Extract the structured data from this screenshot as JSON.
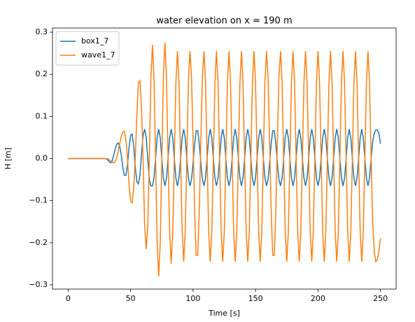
{
  "chart_data": {
    "type": "line",
    "title": "water elevation on x = 190 m",
    "x_label": "Time [s]",
    "y_label": "H [m]",
    "legend": "upper left",
    "grid": false,
    "xlim": [
      -12.5,
      262.5
    ],
    "ylim": [
      -0.31,
      0.31
    ],
    "xticks": [
      0,
      50,
      100,
      150,
      200,
      250
    ],
    "yticks": [
      {
        "value": -0.3,
        "label": "−0.3"
      },
      {
        "value": -0.2,
        "label": "−0.2"
      },
      {
        "value": -0.1,
        "label": "−0.1"
      },
      {
        "value": 0,
        "label": "0.0"
      },
      0.1,
      0.2,
      0.3
    ],
    "x": [
      0,
      1.25,
      2.5,
      3.75,
      5,
      6.25,
      7.5,
      8.75,
      10,
      11.25,
      12.5,
      13.75,
      15,
      16.25,
      17.5,
      18.75,
      20,
      21.25,
      22.5,
      23.75,
      25,
      26.25,
      27.5,
      28.75,
      30,
      31.25,
      32.5,
      33.75,
      35,
      36.25,
      37.5,
      38.75,
      40,
      41.25,
      42.5,
      43.75,
      45,
      46.25,
      47.5,
      48.75,
      50,
      51.25,
      52.5,
      53.75,
      55,
      56.25,
      57.5,
      58.75,
      60,
      61.25,
      62.5,
      63.75,
      65,
      66.25,
      67.5,
      68.75,
      70,
      71.25,
      72.5,
      73.75,
      75,
      76.25,
      77.5,
      78.75,
      80,
      81.25,
      82.5,
      83.75,
      85,
      86.25,
      87.5,
      88.75,
      90,
      91.25,
      92.5,
      93.75,
      95,
      96.25,
      97.5,
      98.75,
      100,
      101.25,
      102.5,
      103.75,
      105,
      106.25,
      107.5,
      108.75,
      110,
      111.25,
      112.5,
      113.75,
      115,
      116.25,
      117.5,
      118.75,
      120,
      121.25,
      122.5,
      123.75,
      125,
      126.25,
      127.5,
      128.75,
      130,
      131.25,
      132.5,
      133.75,
      135,
      136.25,
      137.5,
      138.75,
      140,
      141.25,
      142.5,
      143.75,
      145,
      146.25,
      147.5,
      148.75,
      150,
      151.25,
      152.5,
      153.75,
      155,
      156.25,
      157.5,
      158.75,
      160,
      161.25,
      162.5,
      163.75,
      165,
      166.25,
      167.5,
      168.75,
      170,
      171.25,
      172.5,
      173.75,
      175,
      176.25,
      177.5,
      178.75,
      180,
      181.25,
      182.5,
      183.75,
      185,
      186.25,
      187.5,
      188.75,
      190,
      191.25,
      192.5,
      193.75,
      195,
      196.25,
      197.5,
      198.75,
      200,
      201.25,
      202.5,
      203.75,
      205,
      206.25,
      207.5,
      208.75,
      210,
      211.25,
      212.5,
      213.75,
      215,
      216.25,
      217.5,
      218.75,
      220,
      221.25,
      222.5,
      223.75,
      225,
      226.25,
      227.5,
      228.75,
      230,
      231.25,
      232.5,
      233.75,
      235,
      236.25,
      237.5,
      238.75,
      240,
      241.25,
      242.5,
      243.75,
      245,
      246.25,
      247.5,
      248.75,
      250
    ],
    "series": [
      {
        "name": "box1_7",
        "color": "#1f77b4",
        "values": [
          0,
          0,
          0,
          0,
          0,
          0,
          0,
          0,
          0,
          0,
          0,
          0,
          0,
          0,
          0,
          0,
          0,
          0,
          0,
          0,
          0,
          0,
          0,
          0,
          0,
          -0.002,
          -0.006,
          -0.01,
          -0.008,
          0.005,
          0.02,
          0.033,
          0.037,
          0.03,
          0.01,
          -0.02,
          -0.04,
          -0.04,
          -0.015,
          0.025,
          0.055,
          0.058,
          0.03,
          -0.02,
          -0.055,
          -0.06,
          -0.04,
          0.01,
          0.055,
          0.07,
          0.05,
          0,
          -0.05,
          -0.065,
          -0.065,
          -0.046,
          0,
          0.049,
          0.07,
          0.049,
          0,
          -0.046,
          -0.065,
          -0.046,
          0,
          0.049,
          0.07,
          0.049,
          0,
          -0.046,
          -0.065,
          -0.046,
          0,
          0.049,
          0.07,
          0.049,
          0,
          -0.046,
          -0.065,
          -0.05,
          -0.011,
          0.035,
          0.066,
          0.066,
          0.035,
          -0.011,
          -0.05,
          -0.065,
          -0.046,
          0,
          0.049,
          0.07,
          0.049,
          0,
          -0.046,
          -0.065,
          -0.046,
          0,
          0.049,
          0.07,
          0.049,
          0,
          -0.046,
          -0.065,
          -0.046,
          0,
          0.049,
          0.07,
          0.049,
          0,
          -0.046,
          -0.065,
          -0.046,
          0,
          0.049,
          0.07,
          0.049,
          0,
          -0.046,
          -0.065,
          -0.046,
          0,
          0.049,
          0.07,
          0.049,
          0,
          -0.046,
          -0.065,
          -0.05,
          -0.011,
          0.035,
          0.066,
          0.066,
          0.035,
          -0.011,
          -0.05,
          -0.065,
          -0.046,
          0,
          0.049,
          0.07,
          0.049,
          0,
          -0.046,
          -0.065,
          -0.046,
          0,
          0.049,
          0.07,
          0.049,
          0,
          -0.046,
          -0.065,
          -0.046,
          0,
          0.049,
          0.07,
          0.049,
          0,
          -0.046,
          -0.065,
          -0.046,
          0,
          0.049,
          0.07,
          0.049,
          0,
          -0.046,
          -0.065,
          -0.046,
          0,
          0.049,
          0.07,
          0.049,
          0,
          -0.046,
          -0.065,
          -0.046,
          0,
          0.049,
          0.07,
          0.049,
          0,
          -0.046,
          -0.065,
          -0.046,
          0,
          0.049,
          0.07,
          0.049,
          0,
          -0.046,
          -0.065,
          -0.046,
          0,
          0.04,
          0.06,
          0.068,
          0.068,
          0.06,
          0.035
        ]
      },
      {
        "name": "wave1_7",
        "color": "#ff7f0e",
        "values": [
          0,
          0,
          0,
          0,
          0,
          0,
          0,
          0,
          0,
          0,
          0,
          0,
          0,
          0,
          0,
          0,
          0,
          0,
          0,
          0,
          0,
          0,
          0,
          0,
          0,
          0,
          -0.002,
          -0.005,
          -0.008,
          -0.01,
          -0.008,
          0,
          0.015,
          0.035,
          0.052,
          0.063,
          0.065,
          0.045,
          0,
          -0.06,
          -0.1,
          -0.105,
          -0.07,
          0,
          0.1,
          0.18,
          0.185,
          0.12,
          0,
          -0.16,
          -0.215,
          -0.16,
          0,
          0.19,
          0.27,
          0.19,
          0,
          -0.2,
          -0.28,
          -0.2,
          0,
          0.195,
          0.275,
          0.19,
          0,
          -0.175,
          -0.25,
          -0.175,
          0,
          0.18,
          0.255,
          0.18,
          0,
          -0.17,
          -0.245,
          -0.17,
          0,
          0.18,
          0.255,
          0.196,
          0.043,
          -0.123,
          -0.23,
          -0.23,
          -0.123,
          0.043,
          0.196,
          0.255,
          0.18,
          0,
          -0.173,
          -0.245,
          -0.173,
          0,
          0.18,
          0.255,
          0.18,
          0,
          -0.173,
          -0.245,
          -0.173,
          0,
          0.18,
          0.255,
          0.18,
          0,
          -0.173,
          -0.245,
          -0.173,
          0,
          0.18,
          0.255,
          0.18,
          0,
          -0.173,
          -0.245,
          -0.173,
          0,
          0.18,
          0.255,
          0.18,
          0,
          -0.173,
          -0.245,
          -0.173,
          0,
          0.18,
          0.255,
          0.196,
          0.043,
          -0.123,
          -0.23,
          -0.23,
          -0.123,
          0.043,
          0.196,
          0.255,
          0.18,
          0,
          -0.173,
          -0.245,
          -0.173,
          0,
          0.18,
          0.255,
          0.18,
          0,
          -0.173,
          -0.245,
          -0.173,
          0,
          0.18,
          0.255,
          0.18,
          0,
          -0.173,
          -0.245,
          -0.173,
          0,
          0.18,
          0.255,
          0.18,
          0,
          -0.173,
          -0.245,
          -0.173,
          0,
          0.18,
          0.255,
          0.18,
          0,
          -0.173,
          -0.245,
          -0.173,
          0,
          0.18,
          0.255,
          0.18,
          0,
          -0.173,
          -0.245,
          -0.173,
          0,
          0.18,
          0.255,
          0.18,
          0,
          -0.173,
          -0.245,
          -0.173,
          0,
          0.18,
          0.255,
          0.18,
          0,
          -0.15,
          -0.22,
          -0.245,
          -0.24,
          -0.22,
          -0.19
        ]
      }
    ]
  }
}
